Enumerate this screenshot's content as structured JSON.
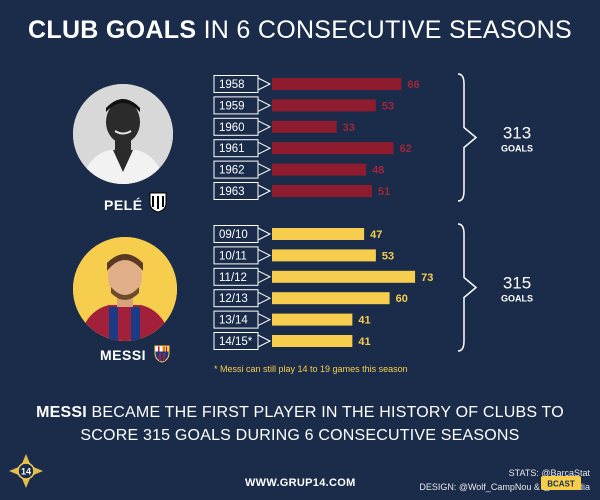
{
  "header": {
    "title_bold": "CLUB GOALS",
    "title_rest": "IN 6 CONSECUTIVE SEASONS"
  },
  "players": [
    {
      "name": "PELÉ",
      "total": "313",
      "unit": "GOALS"
    },
    {
      "name": "MESSI",
      "total": "315",
      "unit": "GOALS"
    }
  ],
  "chart_data": {
    "type": "bar",
    "orientation": "horizontal",
    "groups": [
      {
        "player": "PELÉ",
        "categories": [
          "1958",
          "1959",
          "1960",
          "1961",
          "1962",
          "1963"
        ],
        "values": [
          66,
          53,
          33,
          62,
          48,
          51
        ],
        "total": 313,
        "color": "#8e1b2e",
        "label_color": "#a0263a"
      },
      {
        "player": "MESSI",
        "categories": [
          "09/10",
          "10/11",
          "11/12",
          "12/13",
          "13/14",
          "14/15*"
        ],
        "values": [
          47,
          53,
          73,
          60,
          41,
          41
        ],
        "total": 315,
        "color": "#f6cd4d",
        "label_color": "#f6cd4d"
      }
    ],
    "axes": "none",
    "grid": false
  },
  "footnote": "* Messi can still play 14 to 19 games this season",
  "headline": {
    "bold": "MESSI",
    "line1": "BECAME THE FIRST PLAYER IN THE HISTORY OF CLUBS TO",
    "line2": "SCORE 315 GOALS DURING 6 CONSECUTIVE SEASONS"
  },
  "footer": {
    "website": "WWW.GRUP14.COM",
    "stats": "STATS: @BarcaStat",
    "design": "DESIGN: @Wolf_CampNou & @XusBadia",
    "logo_text": "14",
    "badge_text": "BCAST"
  },
  "colors": {
    "background": "#1b2c4a",
    "pele_bar": "#8e1b2e",
    "messi_bar": "#f6cd4d"
  }
}
